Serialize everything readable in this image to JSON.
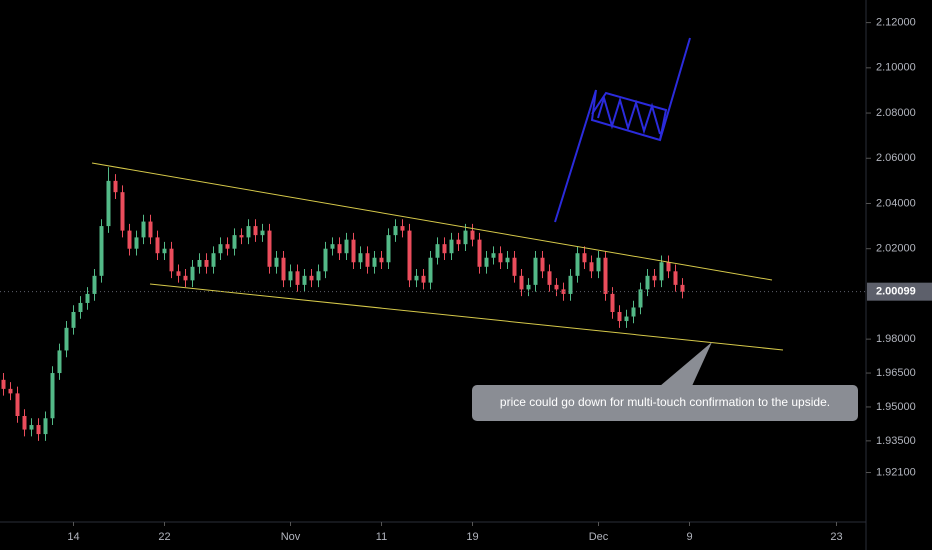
{
  "chart_data": {
    "type": "candlestick",
    "up_color": "#53b987",
    "down_color": "#eb4d5c",
    "categories": [
      null,
      null,
      null,
      null,
      null,
      null,
      null,
      null,
      null,
      null,
      "14",
      null,
      null,
      null,
      null,
      null,
      null,
      null,
      null,
      null,
      null,
      null,
      null,
      "22",
      null,
      null,
      null,
      null,
      null,
      null,
      null,
      null,
      null,
      null,
      null,
      null,
      null,
      null,
      null,
      null,
      null,
      "Nov",
      null,
      null,
      null,
      null,
      null,
      null,
      null,
      null,
      null,
      null,
      null,
      null,
      "11",
      null,
      null,
      null,
      null,
      null,
      null,
      null,
      null,
      null,
      null,
      null,
      null,
      "19",
      null,
      null,
      null,
      null,
      null,
      null,
      null,
      null,
      null,
      null,
      null,
      null,
      null,
      null,
      null,
      null,
      null,
      "Dec",
      null,
      null,
      null,
      null,
      null,
      null,
      null,
      null,
      null,
      null,
      null,
      null,
      "9",
      null,
      null,
      null,
      null,
      null,
      null,
      null,
      null,
      null,
      null,
      null,
      null,
      null,
      null,
      null,
      null,
      null,
      null,
      null,
      null,
      "23"
    ],
    "open": [
      1.962,
      1.958,
      1.956,
      1.946,
      1.94,
      1.942,
      1.938,
      1.945,
      1.965,
      1.975,
      1.985,
      1.992,
      1.996,
      2.0,
      2.008,
      2.03,
      2.05,
      2.045,
      2.028,
      2.02,
      2.025,
      2.032,
      2.025,
      2.018,
      2.02,
      2.01,
      2.008,
      2.006,
      2.012,
      2.015,
      2.012,
      2.018,
      2.022,
      2.02,
      2.026,
      2.025,
      2.03,
      2.026,
      2.028,
      2.012,
      2.016,
      2.006,
      2.01,
      2.004,
      2.008,
      2.006,
      2.01,
      2.02,
      2.022,
      2.018,
      2.024,
      2.014,
      2.018,
      2.012,
      2.016,
      2.014,
      2.026,
      2.03,
      2.028,
      2.006,
      2.008,
      2.005,
      2.016,
      2.022,
      2.018,
      2.024,
      2.022,
      2.028,
      2.024,
      2.012,
      2.016,
      2.018,
      2.014,
      2.016,
      2.008,
      2.002,
      2.004,
      2.016,
      2.01,
      2.004,
      2.002,
      2.0,
      2.008,
      2.018,
      2.014,
      2.01,
      2.016,
      2.0,
      1.992,
      1.988,
      1.99,
      1.994,
      2.002,
      2.008,
      2.006,
      2.014,
      2.01,
      2.004,
      null,
      null,
      null,
      null,
      null,
      null,
      null,
      null,
      null,
      null,
      null,
      null,
      null,
      null,
      null,
      null,
      null,
      null,
      null,
      null,
      null,
      null
    ],
    "high": [
      1.965,
      1.961,
      1.959,
      1.949,
      1.945,
      1.945,
      1.948,
      1.968,
      1.978,
      1.988,
      1.995,
      1.999,
      2.003,
      2.011,
      2.033,
      2.056,
      2.053,
      2.048,
      2.031,
      2.028,
      2.035,
      2.035,
      2.028,
      2.023,
      2.023,
      2.013,
      2.011,
      2.015,
      2.018,
      2.018,
      2.021,
      2.025,
      2.025,
      2.029,
      2.029,
      2.033,
      2.033,
      2.031,
      2.031,
      2.019,
      2.019,
      2.013,
      2.013,
      2.011,
      2.011,
      2.013,
      2.023,
      2.025,
      2.025,
      2.027,
      2.027,
      2.021,
      2.021,
      2.019,
      2.019,
      2.029,
      2.033,
      2.033,
      2.031,
      2.011,
      2.011,
      2.019,
      2.025,
      2.025,
      2.027,
      2.027,
      2.031,
      2.031,
      2.027,
      2.019,
      2.021,
      2.021,
      2.019,
      2.019,
      2.011,
      2.007,
      2.019,
      2.019,
      2.013,
      2.007,
      2.005,
      2.011,
      2.021,
      2.021,
      2.017,
      2.019,
      2.019,
      2.003,
      1.995,
      1.993,
      1.997,
      2.005,
      2.011,
      2.011,
      2.017,
      2.017,
      2.013,
      2.007,
      null,
      null,
      null,
      null,
      null,
      null,
      null,
      null,
      null,
      null,
      null,
      null,
      null,
      null,
      null,
      null,
      null,
      null,
      null,
      null,
      null,
      null
    ],
    "low": [
      1.955,
      1.953,
      1.943,
      1.937,
      1.937,
      1.935,
      1.935,
      1.942,
      1.962,
      1.972,
      1.982,
      1.989,
      1.993,
      1.997,
      2.005,
      2.027,
      2.042,
      2.025,
      2.017,
      2.017,
      2.022,
      2.022,
      2.015,
      2.015,
      2.007,
      2.005,
      2.003,
      2.003,
      2.009,
      2.009,
      2.009,
      2.015,
      2.017,
      2.017,
      2.022,
      2.022,
      2.023,
      2.023,
      2.009,
      2.009,
      2.003,
      2.003,
      2.001,
      2.001,
      2.003,
      2.003,
      2.007,
      2.017,
      2.015,
      2.015,
      2.011,
      2.011,
      2.009,
      2.009,
      2.011,
      2.011,
      2.023,
      2.025,
      2.003,
      2.003,
      2.002,
      2.002,
      2.013,
      2.015,
      2.015,
      2.019,
      2.019,
      2.021,
      2.009,
      2.009,
      2.013,
      2.011,
      2.011,
      2.005,
      1.999,
      1.999,
      2.001,
      2.007,
      2.001,
      1.999,
      1.997,
      1.997,
      2.005,
      2.011,
      2.007,
      2.007,
      1.997,
      1.989,
      1.985,
      1.985,
      1.987,
      1.991,
      1.999,
      2.003,
      2.003,
      2.007,
      2.001,
      1.998,
      null,
      null,
      null,
      null,
      null,
      null,
      null,
      null,
      null,
      null,
      null,
      null,
      null,
      null,
      null,
      null,
      null,
      null,
      null,
      null,
      null,
      null
    ],
    "close": [
      1.958,
      1.956,
      1.946,
      1.94,
      1.942,
      1.938,
      1.945,
      1.965,
      1.975,
      1.985,
      1.992,
      1.996,
      2.0,
      2.008,
      2.03,
      2.05,
      2.045,
      2.028,
      2.02,
      2.025,
      2.032,
      2.025,
      2.018,
      2.02,
      2.01,
      2.008,
      2.006,
      2.012,
      2.015,
      2.012,
      2.018,
      2.022,
      2.02,
      2.026,
      2.025,
      2.03,
      2.026,
      2.028,
      2.012,
      2.016,
      2.006,
      2.01,
      2.004,
      2.008,
      2.006,
      2.01,
      2.02,
      2.022,
      2.018,
      2.024,
      2.014,
      2.018,
      2.012,
      2.016,
      2.014,
      2.026,
      2.03,
      2.028,
      2.006,
      2.008,
      2.005,
      2.016,
      2.022,
      2.018,
      2.024,
      2.022,
      2.028,
      2.024,
      2.012,
      2.016,
      2.018,
      2.014,
      2.016,
      2.008,
      2.002,
      2.004,
      2.016,
      2.01,
      2.004,
      2.002,
      2.0,
      2.008,
      2.018,
      2.014,
      2.01,
      2.016,
      2.0,
      1.992,
      1.988,
      1.99,
      1.994,
      2.002,
      2.008,
      2.006,
      2.014,
      2.01,
      2.004,
      2.00099,
      null,
      null,
      null,
      null,
      null,
      null,
      null,
      null,
      null,
      null,
      null,
      null,
      null,
      null,
      null,
      null,
      null,
      null,
      null,
      null,
      null,
      null
    ],
    "ylim": [
      1.9,
      2.13
    ],
    "yticks": [
      {
        "value": 2.12,
        "label": "2.12000"
      },
      {
        "value": 2.1,
        "label": "2.10000"
      },
      {
        "value": 2.08,
        "label": "2.08000"
      },
      {
        "value": 2.06,
        "label": "2.06000"
      },
      {
        "value": 2.04,
        "label": "2.04000"
      },
      {
        "value": 2.02,
        "label": "2.02000"
      },
      {
        "value": 1.98,
        "label": "1.98000"
      },
      {
        "value": 1.965,
        "label": "1.96500"
      },
      {
        "value": 1.95,
        "label": "1.95000"
      },
      {
        "value": 1.935,
        "label": "1.93500"
      },
      {
        "value": 1.921,
        "label": "1.92100"
      }
    ],
    "last_price": 2.00099,
    "last_price_color": "#5d606b",
    "annotation": "price could go down for multi-touch confirmation to the upside."
  }
}
